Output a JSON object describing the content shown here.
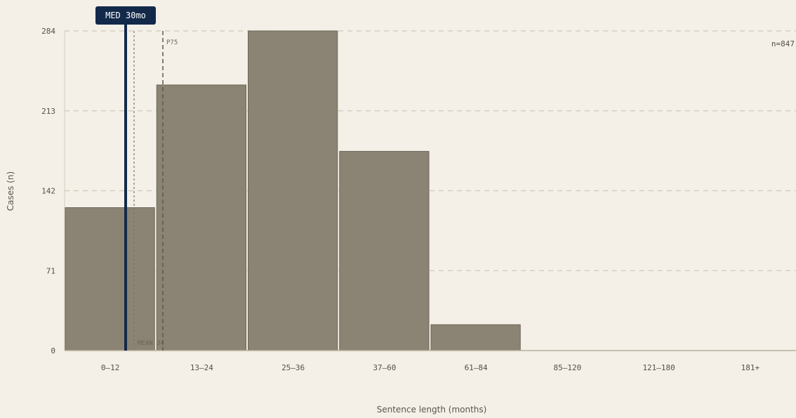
{
  "chart_data": {
    "type": "bar",
    "categories": [
      "0–12",
      "13–24",
      "25–36",
      "37–60",
      "61–84",
      "85–120",
      "121–180",
      "181+"
    ],
    "values": [
      127,
      236,
      284,
      177,
      23,
      0,
      0,
      0
    ],
    "xlabel": "Sentence length (months)",
    "ylabel": "Cases (n)",
    "ylim": [
      0,
      284
    ],
    "yticks": [
      "0",
      "71",
      "142",
      "213",
      "284"
    ],
    "grid": true,
    "annotations": {
      "median": {
        "label": "MED 30mo",
        "value": 30
      },
      "mean": {
        "label": "MEAN 34",
        "value": 34
      },
      "p75": {
        "label": "P75"
      },
      "count": "n=847"
    },
    "colors": {
      "bar": "#8b8373",
      "bar_edge": "#6e675a",
      "median_line": "#13294a",
      "background": "#f4f0e8",
      "grid": "#cfc7b7"
    }
  }
}
